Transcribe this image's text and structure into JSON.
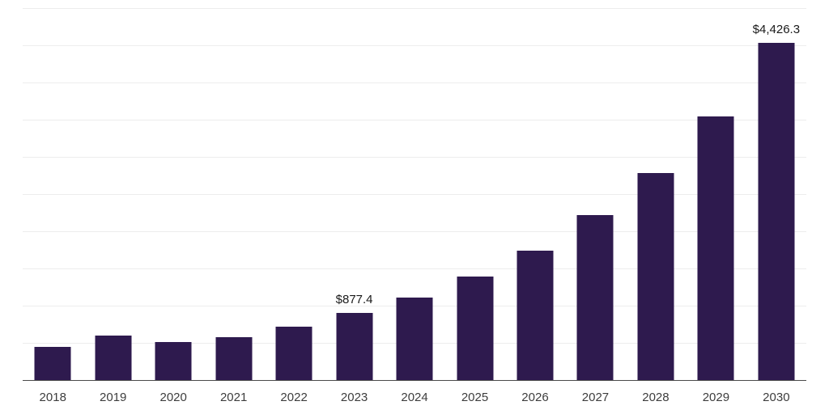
{
  "chart_data": {
    "type": "bar",
    "title": "",
    "xlabel": "",
    "ylabel": "",
    "categories": [
      "2018",
      "2019",
      "2020",
      "2021",
      "2022",
      "2023",
      "2024",
      "2025",
      "2026",
      "2027",
      "2028",
      "2029",
      "2030"
    ],
    "values": [
      435,
      580,
      500,
      560,
      700,
      877.4,
      1080,
      1360,
      1700,
      2160,
      2720,
      3460,
      4426.3
    ],
    "data_labels": {
      "2023": "$877.4",
      "2030": "$4,426.3"
    },
    "ylim": [
      0,
      4880
    ],
    "gridline_count": 10,
    "grid": "horizontal",
    "legend_position": "none",
    "bar_color": "#2e1a4e",
    "gridline_color": "#ededed",
    "axis_line_color": "#4a4a4a",
    "label_color": "#3d3d3d"
  }
}
